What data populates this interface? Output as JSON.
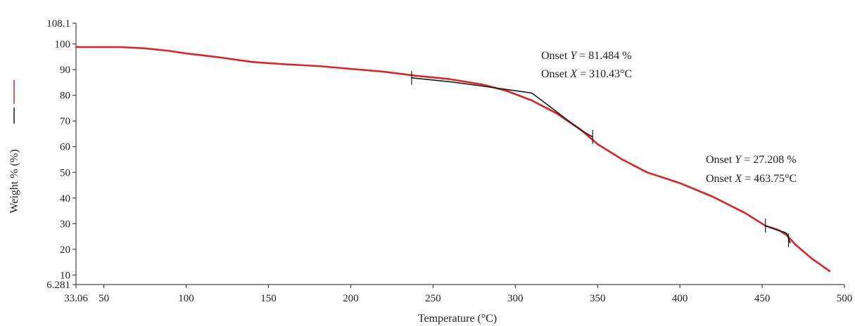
{
  "chart_data": {
    "type": "line",
    "xlabel": "Temperature (°C)",
    "ylabel": "Weight % (%)",
    "xlim": [
      33.06,
      500
    ],
    "ylim": [
      6.281,
      108.1
    ],
    "x_ticks": [
      "33.06",
      "50",
      "100",
      "150",
      "200",
      "250",
      "300",
      "350",
      "400",
      "450",
      "500"
    ],
    "x_tick_values": [
      33.06,
      50,
      100,
      150,
      200,
      250,
      300,
      350,
      400,
      450,
      500
    ],
    "y_ticks": [
      "6.281",
      "10",
      "20",
      "30",
      "40",
      "50",
      "60",
      "70",
      "80",
      "90",
      "100",
      "108.1"
    ],
    "y_tick_values": [
      6.281,
      10,
      20,
      30,
      40,
      50,
      60,
      70,
      80,
      90,
      100,
      108.1
    ],
    "grid": false,
    "legend": "left side, vertical",
    "series": [
      {
        "color": "#d7262b",
        "points": [
          [
            33.06,
            98.8
          ],
          [
            60,
            98.8
          ],
          [
            75,
            98.3
          ],
          [
            90,
            97.3
          ],
          [
            100,
            96.3
          ],
          [
            120,
            94.8
          ],
          [
            140,
            93
          ],
          [
            160,
            92.1
          ],
          [
            180,
            91.4
          ],
          [
            200,
            90.3
          ],
          [
            220,
            89.2
          ],
          [
            240,
            87.6
          ],
          [
            260,
            86.3
          ],
          [
            280,
            84.2
          ],
          [
            295,
            81.7
          ],
          [
            310,
            78
          ],
          [
            325,
            73
          ],
          [
            340,
            66.5
          ],
          [
            350,
            61
          ],
          [
            365,
            55
          ],
          [
            380,
            50
          ],
          [
            400,
            45.8
          ],
          [
            420,
            40.5
          ],
          [
            440,
            34
          ],
          [
            452,
            29.2
          ],
          [
            460,
            27.5
          ],
          [
            465,
            25.5
          ],
          [
            470,
            22
          ],
          [
            480,
            16.5
          ],
          [
            491,
            11.5
          ]
        ]
      },
      {
        "color": "#1a1a1a",
        "points": [
          [
            237,
            86.8
          ],
          [
            260,
            85.3
          ],
          [
            280,
            83.6
          ],
          [
            300,
            81.8
          ],
          [
            310,
            80.9
          ],
          [
            320,
            76.1
          ],
          [
            330,
            71.2
          ],
          [
            340,
            66.4
          ],
          [
            347,
            63.8
          ]
        ]
      },
      {
        "color": "#1a1a1a",
        "points": [
          [
            452,
            29.2
          ],
          [
            460,
            27.3
          ],
          [
            463.75,
            26.6
          ],
          [
            465,
            26.1
          ],
          [
            467,
            22.5
          ]
        ]
      }
    ],
    "markers": [
      {
        "x": 237,
        "y": 86.8
      },
      {
        "x": 347,
        "y": 63.8
      },
      {
        "x": 452,
        "y": 29.2
      },
      {
        "x": 466,
        "y": 23.5
      }
    ],
    "annotations": [
      {
        "line1_pre": "Onset ",
        "line1_var": "Y",
        "line1_post": " = 81.484 %",
        "line2_pre": "Onset ",
        "line2_var": "X",
        "line2_post": " = 310.43°C"
      },
      {
        "line1_pre": "Onset ",
        "line1_var": "Y",
        "line1_post": " = 27.208 %",
        "line2_pre": "Onset ",
        "line2_var": "X",
        "line2_post": " = 463.75°C"
      }
    ]
  }
}
